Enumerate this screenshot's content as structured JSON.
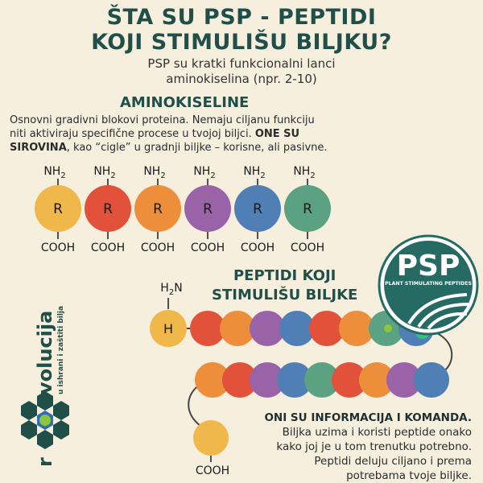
{
  "header": {
    "title_line1": "ŠTA SU PSP - PEPTIDI",
    "title_line2": "KOJI STIMULIŠU BILJKU?",
    "subtitle_line1": "PSP su kratki funkcionalni lanci",
    "subtitle_line2": "aminokiselina (npr. 2-10)"
  },
  "amino": {
    "heading": "AMINOKISELINE",
    "line1": "Osnovni gradivni blokovi proteina. Nemaju ciljanu funkciju",
    "line2": "niti aktiviraju specifične procese u tvojoj biljci.",
    "line2_bold": "ONE SU",
    "line3_bold": "SIROVINA",
    "line3": ", kao “cigle” u gradnji biljke – korisne, ali pasivne.",
    "nh2_label": "NH",
    "nh2_sub": "2",
    "r_label": "R",
    "cooh_label": "COOH",
    "colors": [
      "#f0b84a",
      "#e2523a",
      "#ec8e3a",
      "#9a63a8",
      "#4f7fb5",
      "#5aa282"
    ]
  },
  "peptides": {
    "heading_line1": "PEPTIDI KOJI",
    "heading_line2": "STIMULIŠU BILJKE",
    "h2n_label": "H",
    "h2n_sub": "2",
    "h2n_n": "N",
    "h_label": "H",
    "cooh_label": "COOH",
    "row1_colors": [
      "#e2523a",
      "#ec8e3a",
      "#9a63a8",
      "#4f7fb5",
      "#e2523a",
      "#ec8e3a",
      "#5aa282",
      "#4f7fb5"
    ],
    "row2_colors": [
      "#ec8e3a",
      "#e2523a",
      "#9a63a8",
      "#4f7fb5",
      "#5aa282",
      "#e2523a",
      "#ec8e3a",
      "#9a63a8",
      "#4f7fb5"
    ],
    "end_color": "#f0b84a"
  },
  "info": {
    "line1": "ONI SU INFORMACIJA I KOMANDA.",
    "line2": "Biljka uzima i koristi peptide onako",
    "line3": "kako joj je u tom trenutku potrebno.",
    "line4": "Peptidi deluju ciljano i prema",
    "line5": "potrebama tvoje biljke."
  },
  "badge": {
    "title": "PSP",
    "subtitle": "PLANT STIMULATING PEPTIDES",
    "color": "#256b63"
  },
  "brand": {
    "name": "volucija",
    "prefix": "r",
    "tagline": "u ishrani i zaštiti bilja",
    "color": "#1f4f48"
  }
}
